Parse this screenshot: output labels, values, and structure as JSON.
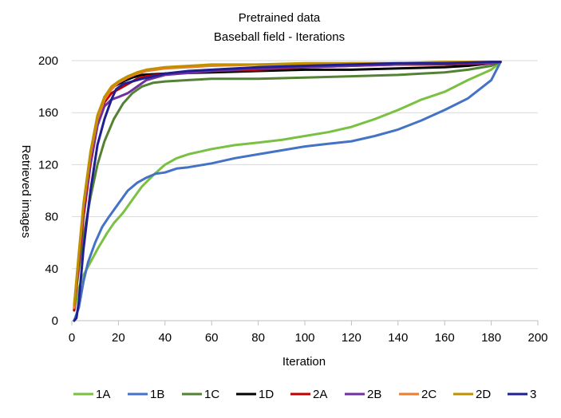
{
  "chart_data": {
    "type": "line",
    "title": "Pretrained data",
    "subtitle": "Baseball field - Iterations",
    "xlabel": "Iteration",
    "ylabel": "Retrieved images",
    "xlim": [
      0,
      200
    ],
    "ylim": [
      0,
      200
    ],
    "xticks": [
      0,
      20,
      40,
      60,
      80,
      100,
      120,
      140,
      160,
      180,
      200
    ],
    "yticks": [
      0,
      40,
      80,
      120,
      160,
      200
    ],
    "grid": "horizontal",
    "legend_position": "bottom",
    "series": [
      {
        "name": "1A",
        "color": "#7ac143",
        "x": [
          1,
          3,
          5,
          8,
          11,
          15,
          18,
          22,
          26,
          30,
          35,
          40,
          45,
          50,
          60,
          70,
          80,
          90,
          100,
          110,
          120,
          130,
          140,
          150,
          160,
          170,
          180,
          184
        ],
        "y": [
          8,
          25,
          35,
          45,
          55,
          67,
          75,
          83,
          93,
          103,
          112,
          120,
          125,
          128,
          132,
          135,
          137,
          139,
          142,
          145,
          149,
          155,
          162,
          170,
          176,
          185,
          193,
          199
        ]
      },
      {
        "name": "1B",
        "color": "#4472c4",
        "x": [
          1,
          3,
          5,
          7,
          10,
          13,
          16,
          20,
          24,
          28,
          32,
          36,
          40,
          45,
          50,
          60,
          70,
          80,
          90,
          100,
          110,
          120,
          130,
          140,
          150,
          160,
          170,
          180,
          184
        ],
        "y": [
          0,
          10,
          30,
          45,
          60,
          72,
          80,
          90,
          100,
          106,
          110,
          113,
          114,
          117,
          118,
          121,
          125,
          128,
          131,
          134,
          136,
          138,
          142,
          147,
          154,
          162,
          171,
          185,
          199
        ]
      },
      {
        "name": "1C",
        "color": "#548235",
        "x": [
          1,
          3,
          5,
          8,
          11,
          14,
          18,
          22,
          26,
          30,
          35,
          40,
          50,
          60,
          80,
          100,
          120,
          140,
          150,
          160,
          170,
          180,
          184
        ],
        "y": [
          10,
          40,
          65,
          95,
          120,
          138,
          155,
          167,
          175,
          180,
          183,
          184,
          185,
          186,
          186,
          187,
          188,
          189,
          190,
          191,
          193,
          196,
          199
        ]
      },
      {
        "name": "1D",
        "color": "#000000",
        "x": [
          1,
          3,
          5,
          8,
          11,
          14,
          18,
          22,
          26,
          30,
          40,
          60,
          80,
          100,
          120,
          140,
          160,
          170,
          180,
          184
        ],
        "y": [
          8,
          50,
          85,
          125,
          155,
          172,
          180,
          184,
          187,
          189,
          190,
          191,
          192,
          193,
          193,
          194,
          195,
          196,
          198,
          199
        ]
      },
      {
        "name": "2A",
        "color": "#c00000",
        "x": [
          1,
          3,
          5,
          8,
          11,
          14,
          17,
          20,
          24,
          28,
          32,
          40,
          60,
          80,
          100,
          120,
          140,
          160,
          180,
          184
        ],
        "y": [
          8,
          45,
          80,
          120,
          150,
          168,
          175,
          178,
          182,
          186,
          188,
          190,
          192,
          193,
          195,
          196,
          197,
          197,
          198,
          199
        ]
      },
      {
        "name": "2B",
        "color": "#7030a0",
        "x": [
          1,
          3,
          5,
          8,
          11,
          14,
          17,
          20,
          24,
          28,
          32,
          40,
          60,
          80,
          100,
          120,
          140,
          160,
          180,
          184
        ],
        "y": [
          10,
          48,
          85,
          122,
          150,
          165,
          170,
          172,
          175,
          180,
          185,
          189,
          192,
          194,
          195,
          196,
          197,
          198,
          198,
          199
        ]
      },
      {
        "name": "2C",
        "color": "#ed7d31",
        "x": [
          1,
          3,
          5,
          8,
          11,
          14,
          17,
          20,
          24,
          28,
          32,
          40,
          60,
          80,
          100,
          120,
          140,
          160,
          180,
          184
        ],
        "y": [
          10,
          50,
          88,
          128,
          155,
          170,
          178,
          183,
          187,
          190,
          192,
          194,
          196,
          197,
          197,
          198,
          198,
          198,
          199,
          199
        ]
      },
      {
        "name": "2D",
        "color": "#bf9000",
        "x": [
          1,
          3,
          5,
          8,
          11,
          14,
          17,
          20,
          24,
          28,
          32,
          40,
          60,
          80,
          100,
          120,
          140,
          160,
          180,
          184
        ],
        "y": [
          12,
          52,
          90,
          130,
          158,
          172,
          180,
          184,
          188,
          191,
          193,
          195,
          197,
          197,
          198,
          198,
          198,
          199,
          199,
          199
        ]
      },
      {
        "name": "3",
        "color": "#1f1f8f",
        "x": [
          1,
          2,
          3,
          5,
          8,
          11,
          14,
          17,
          19,
          22,
          26,
          30,
          35,
          40,
          50,
          60,
          80,
          100,
          120,
          140,
          160,
          180,
          184
        ],
        "y": [
          0,
          2,
          15,
          55,
          100,
          135,
          155,
          170,
          178,
          182,
          184,
          186,
          188,
          190,
          192,
          193,
          195,
          196,
          197,
          198,
          198,
          199,
          199
        ]
      }
    ]
  }
}
